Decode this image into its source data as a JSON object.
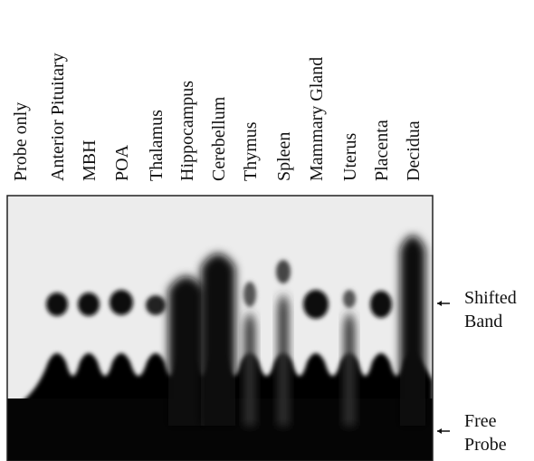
{
  "lanes": [
    "Probe only",
    "Anterior Pituitary",
    "MBH",
    "POA",
    "Thalamus",
    "Hippocampus",
    "Cerebellum",
    "Thymus",
    "Spleen",
    "Mammary Gland",
    "Uterus",
    "Placenta",
    "Decidua"
  ],
  "annotations": {
    "shifted_band": [
      "Shifted",
      "Band"
    ],
    "free_probe": [
      "Free",
      "Probe"
    ]
  }
}
